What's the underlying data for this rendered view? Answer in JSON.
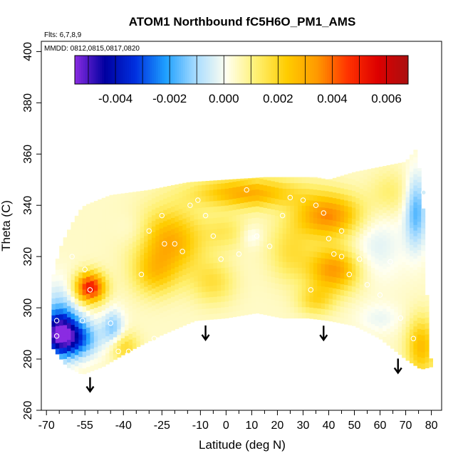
{
  "chart_data": {
    "type": "heatmap",
    "title": "ATOM1 Northbound fC5H6O_PM1_AMS",
    "flights_note": "Flts: 6,7,8,9",
    "dates_note": "MMDD: 0812,0815,0817,0820",
    "xlabel": "Latitude (deg N)",
    "ylabel": "Theta (C)",
    "xlim": [
      -72,
      84
    ],
    "ylim": [
      260,
      404
    ],
    "x_ticks": [
      -70,
      -55,
      -40,
      -25,
      -10,
      0,
      10,
      20,
      30,
      40,
      50,
      60,
      70,
      80
    ],
    "x_tick_labels": [
      "-70",
      "-55",
      "-40",
      "-25",
      "-10",
      "0",
      "10",
      "20",
      "30",
      "40",
      "50",
      "60",
      "70",
      "80"
    ],
    "x_minor_ticks": [
      -65,
      -60,
      -50,
      -45,
      -35,
      -30,
      -20,
      -15,
      -5,
      5,
      15,
      25,
      35,
      45,
      55,
      65,
      75
    ],
    "y_ticks": [
      260,
      280,
      300,
      320,
      340,
      360,
      380,
      400
    ],
    "y_tick_labels": [
      "260",
      "280",
      "300",
      "320",
      "340",
      "360",
      "380",
      "400"
    ],
    "colorbar": {
      "range": [
        -0.0055,
        0.0068
      ],
      "ticks": [
        -0.004,
        -0.002,
        0.0,
        0.002,
        0.004,
        0.006
      ],
      "tick_labels": [
        "-0.004",
        "-0.002",
        "0.000",
        "0.002",
        "0.004",
        "0.006"
      ],
      "colors": [
        "#8a2be2",
        "#0000a0",
        "#0030e0",
        "#1ea0ff",
        "#a8dcff",
        "#fffff0",
        "#fff070",
        "#ffcc00",
        "#ff9900",
        "#ff3300",
        "#dd0000",
        "#aa1010"
      ]
    },
    "arrows_latitude": [
      -53,
      -8,
      38,
      67
    ],
    "envelope": {
      "top": [
        [
          -68,
          307
        ],
        [
          -67,
          315
        ],
        [
          -64,
          325
        ],
        [
          -60,
          333
        ],
        [
          -57,
          338
        ],
        [
          -55,
          340
        ],
        [
          -45,
          344
        ],
        [
          -30,
          346
        ],
        [
          -15,
          349
        ],
        [
          0,
          350
        ],
        [
          15,
          351
        ],
        [
          25,
          351
        ],
        [
          35,
          351
        ],
        [
          40,
          350
        ],
        [
          50,
          353
        ],
        [
          60,
          355
        ],
        [
          70,
          357
        ],
        [
          74,
          362
        ],
        [
          76,
          350
        ],
        [
          77,
          335
        ],
        [
          78,
          310
        ],
        [
          79,
          290
        ],
        [
          80,
          277
        ]
      ],
      "bottom": [
        [
          -68,
          307
        ],
        [
          -68,
          285
        ],
        [
          -62,
          277
        ],
        [
          -56,
          274
        ],
        [
          -48,
          277
        ],
        [
          -38,
          283
        ],
        [
          -26,
          289
        ],
        [
          -12,
          295
        ],
        [
          0,
          296
        ],
        [
          12,
          298
        ],
        [
          22,
          296
        ],
        [
          32,
          296
        ],
        [
          40,
          295
        ],
        [
          50,
          293
        ],
        [
          60,
          288
        ],
        [
          70,
          280
        ],
        [
          76,
          276
        ],
        [
          80,
          277
        ]
      ]
    },
    "grid": {
      "lat_step": 1.5,
      "theta_step": 2.2
    },
    "features": [
      {
        "lat": -53,
        "theta": 308,
        "value": 0.0048,
        "sx": 4,
        "sy": 4
      },
      {
        "lat": -65,
        "theta": 290,
        "value": -0.0048,
        "sx": 5,
        "sy": 6
      },
      {
        "lat": -58,
        "theta": 288,
        "value": -0.0028,
        "sx": 6,
        "sy": 5
      },
      {
        "lat": -44,
        "theta": 292,
        "value": -0.0018,
        "sx": 3,
        "sy": 5
      },
      {
        "lat": -65,
        "theta": 300,
        "value": -0.0012,
        "sx": 5,
        "sy": 8
      },
      {
        "lat": -40,
        "theta": 285,
        "value": 0.0016,
        "sx": 4,
        "sy": 4
      },
      {
        "lat": -22,
        "theta": 326,
        "value": 0.0026,
        "sx": 9,
        "sy": 9
      },
      {
        "lat": -28,
        "theta": 313,
        "value": 0.0015,
        "sx": 6,
        "sy": 6
      },
      {
        "lat": 8,
        "theta": 345,
        "value": 0.0026,
        "sx": 14,
        "sy": 4
      },
      {
        "lat": 40,
        "theta": 336,
        "value": 0.0032,
        "sx": 9,
        "sy": 6
      },
      {
        "lat": 42,
        "theta": 315,
        "value": 0.003,
        "sx": 7,
        "sy": 6
      },
      {
        "lat": 35,
        "theta": 303,
        "value": 0.0014,
        "sx": 5,
        "sy": 4
      },
      {
        "lat": 10,
        "theta": 328,
        "value": -0.0006,
        "sx": 3,
        "sy": 3
      },
      {
        "lat": -5,
        "theta": 310,
        "value": 0.0012,
        "sx": 6,
        "sy": 6
      },
      {
        "lat": 0,
        "theta": 330,
        "value": 0.0009,
        "sx": 6,
        "sy": 5
      },
      {
        "lat": 25,
        "theta": 322,
        "value": 0.0012,
        "sx": 6,
        "sy": 8
      },
      {
        "lat": 58,
        "theta": 325,
        "value": -0.0008,
        "sx": 8,
        "sy": 10
      },
      {
        "lat": 74,
        "theta": 338,
        "value": -0.0022,
        "sx": 3,
        "sy": 10
      },
      {
        "lat": 76,
        "theta": 285,
        "value": 0.0022,
        "sx": 4,
        "sy": 8
      },
      {
        "lat": 60,
        "theta": 296,
        "value": -0.0006,
        "sx": 6,
        "sy": 4
      },
      {
        "lat": 64,
        "theta": 345,
        "value": 0.0008,
        "sx": 6,
        "sy": 6
      },
      {
        "lat": -35,
        "theta": 330,
        "value": -0.0005,
        "sx": 5,
        "sy": 5
      }
    ],
    "sample_points": [
      [
        -53,
        307
      ],
      [
        -66,
        295
      ],
      [
        -66,
        289
      ],
      [
        -56,
        295
      ],
      [
        -45,
        294
      ],
      [
        -42,
        283
      ],
      [
        -25,
        336
      ],
      [
        -24,
        325
      ],
      [
        -20,
        325
      ],
      [
        -17,
        322
      ],
      [
        -30,
        330
      ],
      [
        -33,
        313
      ],
      [
        -14,
        340
      ],
      [
        -11,
        342
      ],
      [
        -8,
        336
      ],
      [
        -5,
        328
      ],
      [
        -2,
        319
      ],
      [
        5,
        321
      ],
      [
        8,
        346
      ],
      [
        12,
        328
      ],
      [
        17,
        324
      ],
      [
        22,
        336
      ],
      [
        25,
        343
      ],
      [
        30,
        342
      ],
      [
        35,
        340
      ],
      [
        38,
        337
      ],
      [
        40,
        327
      ],
      [
        42,
        321
      ],
      [
        45,
        320
      ],
      [
        48,
        313
      ],
      [
        52,
        319
      ],
      [
        55,
        309
      ],
      [
        60,
        305
      ],
      [
        64,
        318
      ],
      [
        68,
        296
      ],
      [
        73,
        288
      ],
      [
        77,
        345
      ],
      [
        -60,
        320
      ],
      [
        -38,
        283
      ],
      [
        -28,
        288
      ],
      [
        -55,
        315
      ],
      [
        33,
        307
      ],
      [
        45,
        330
      ]
    ]
  }
}
